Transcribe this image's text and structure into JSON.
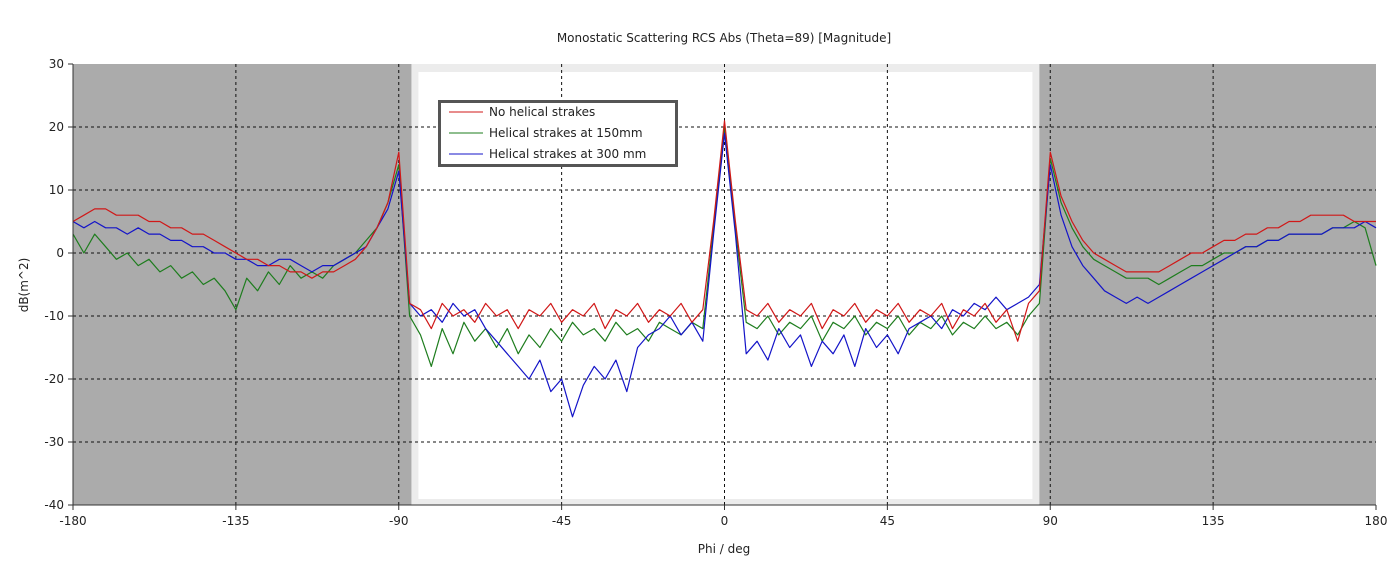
{
  "chart_data": {
    "type": "line",
    "title": "Monostatic Scattering RCS Abs (Theta=89) [Magnitude]",
    "xlabel": "Phi / deg",
    "ylabel": "dB(m^2)",
    "xlim": [
      -180,
      180
    ],
    "ylim": [
      -40,
      30
    ],
    "xticks": [
      -180,
      -135,
      -90,
      -45,
      0,
      45,
      90,
      135,
      180
    ],
    "yticks": [
      -40,
      -30,
      -20,
      -10,
      0,
      10,
      20,
      30
    ],
    "grid": true,
    "legend_position": "top-left",
    "plot_background": "#ababab",
    "highlight_region_color": "#ffffff",
    "highlight_region": [
      -86.5,
      87
    ],
    "x": [
      -180,
      -177,
      -174,
      -171,
      -168,
      -165,
      -162,
      -159,
      -156,
      -153,
      -150,
      -147,
      -144,
      -141,
      -138,
      -135,
      -132,
      -129,
      -126,
      -123,
      -120,
      -117,
      -114,
      -111,
      -108,
      -105,
      -102,
      -99,
      -96,
      -93,
      -90,
      -87,
      -84,
      -81,
      -78,
      -75,
      -72,
      -69,
      -66,
      -63,
      -60,
      -57,
      -54,
      -51,
      -48,
      -45,
      -42,
      -39,
      -36,
      -33,
      -30,
      -27,
      -24,
      -21,
      -18,
      -15,
      -12,
      -9,
      -6,
      -3,
      0,
      3,
      6,
      9,
      12,
      15,
      18,
      21,
      24,
      27,
      30,
      33,
      36,
      39,
      42,
      45,
      48,
      51,
      54,
      57,
      60,
      63,
      66,
      69,
      72,
      75,
      78,
      81,
      84,
      87,
      90,
      93,
      96,
      99,
      102,
      105,
      108,
      111,
      114,
      117,
      120,
      123,
      126,
      129,
      132,
      135,
      138,
      141,
      144,
      147,
      150,
      153,
      156,
      159,
      162,
      165,
      168,
      171,
      174,
      177,
      180
    ],
    "series": [
      {
        "name": "Helical strakes at 150mm",
        "color": "#1e7d1e",
        "values": [
          3,
          0,
          3,
          1,
          -1,
          0,
          -2,
          -1,
          -3,
          -2,
          -4,
          -3,
          -5,
          -4,
          -6,
          -9,
          -4,
          -6,
          -3,
          -5,
          -2,
          -4,
          -3,
          -4,
          -2,
          -1,
          0,
          2,
          4,
          8,
          14,
          -10,
          -13,
          -18,
          -12,
          -16,
          -11,
          -14,
          -12,
          -15,
          -12,
          -16,
          -13,
          -15,
          -12,
          -14,
          -11,
          -13,
          -12,
          -14,
          -11,
          -13,
          -12,
          -14,
          -11,
          -12,
          -13,
          -11,
          -12,
          4,
          20,
          4,
          -11,
          -12,
          -10,
          -13,
          -11,
          -12,
          -10,
          -14,
          -11,
          -12,
          -10,
          -13,
          -11,
          -12,
          -10,
          -13,
          -11,
          -12,
          -10,
          -13,
          -11,
          -12,
          -10,
          -12,
          -11,
          -13,
          -10,
          -8,
          15,
          8,
          4,
          1,
          -1,
          -2,
          -3,
          -4,
          -4,
          -4,
          -5,
          -4,
          -3,
          -2,
          -2,
          -1,
          0,
          0,
          1,
          1,
          2,
          2,
          3,
          3,
          3,
          3,
          4,
          4,
          5,
          4,
          -2
        ]
      },
      {
        "name": "Helical strakes at 300 mm",
        "color": "#1414c8",
        "values": [
          5,
          4,
          5,
          4,
          4,
          3,
          4,
          3,
          3,
          2,
          2,
          1,
          1,
          0,
          0,
          -1,
          -1,
          -2,
          -2,
          -1,
          -1,
          -2,
          -3,
          -2,
          -2,
          -1,
          0,
          1,
          4,
          7,
          13,
          -8,
          -10,
          -9,
          -11,
          -8,
          -10,
          -9,
          -12,
          -14,
          -16,
          -18,
          -20,
          -17,
          -22,
          -20,
          -26,
          -21,
          -18,
          -20,
          -17,
          -22,
          -15,
          -13,
          -12,
          -10,
          -13,
          -11,
          -14,
          3,
          19,
          3,
          -16,
          -14,
          -17,
          -12,
          -15,
          -13,
          -18,
          -14,
          -16,
          -13,
          -18,
          -12,
          -15,
          -13,
          -16,
          -12,
          -11,
          -10,
          -12,
          -9,
          -10,
          -8,
          -9,
          -7,
          -9,
          -8,
          -7,
          -5,
          14,
          6,
          1,
          -2,
          -4,
          -6,
          -7,
          -8,
          -7,
          -8,
          -7,
          -6,
          -5,
          -4,
          -3,
          -2,
          -1,
          0,
          1,
          1,
          2,
          2,
          3,
          3,
          3,
          3,
          4,
          4,
          4,
          5,
          4
        ]
      },
      {
        "name": "No helical strakes",
        "color": "#d01818",
        "values": [
          5,
          6,
          7,
          7,
          6,
          6,
          6,
          5,
          5,
          4,
          4,
          3,
          3,
          2,
          1,
          0,
          -1,
          -1,
          -2,
          -2,
          -3,
          -3,
          -4,
          -3,
          -3,
          -2,
          -1,
          1,
          4,
          8,
          16,
          -8,
          -9,
          -12,
          -8,
          -10,
          -9,
          -11,
          -8,
          -10,
          -9,
          -12,
          -9,
          -10,
          -8,
          -11,
          -9,
          -10,
          -8,
          -12,
          -9,
          -10,
          -8,
          -11,
          -9,
          -10,
          -8,
          -11,
          -9,
          5,
          21,
          5,
          -9,
          -10,
          -8,
          -11,
          -9,
          -10,
          -8,
          -12,
          -9,
          -10,
          -8,
          -11,
          -9,
          -10,
          -8,
          -11,
          -9,
          -10,
          -8,
          -12,
          -9,
          -10,
          -8,
          -11,
          -9,
          -14,
          -8,
          -6,
          16,
          9,
          5,
          2,
          0,
          -1,
          -2,
          -3,
          -3,
          -3,
          -3,
          -2,
          -1,
          0,
          0,
          1,
          2,
          2,
          3,
          3,
          4,
          4,
          5,
          5,
          6,
          6,
          6,
          6,
          5,
          5,
          5
        ]
      }
    ],
    "legend_order": [
      2,
      0,
      1
    ]
  }
}
